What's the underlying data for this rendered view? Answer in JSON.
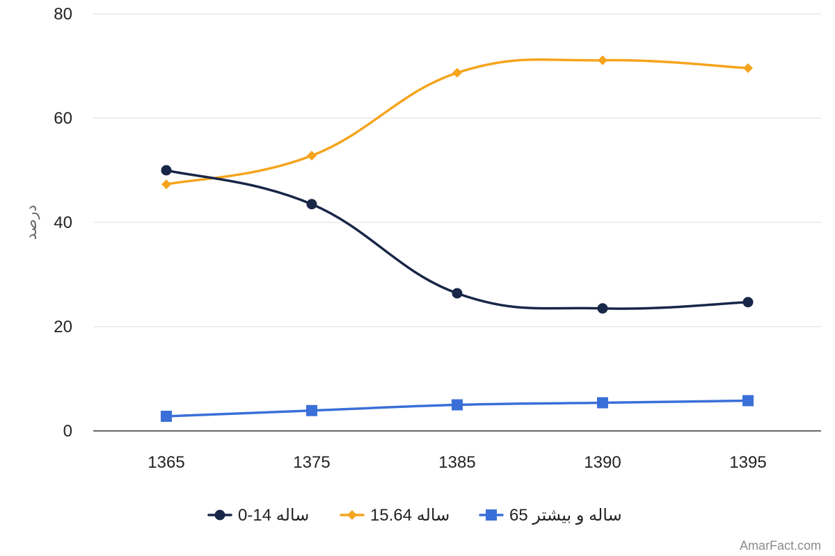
{
  "chart_data": {
    "type": "line",
    "title": "",
    "xlabel": "",
    "ylabel": "درصد",
    "categories": [
      "1365",
      "1375",
      "1385",
      "1390",
      "1395"
    ],
    "ylim": [
      0,
      80
    ],
    "yticks": [
      0,
      20,
      40,
      60,
      80
    ],
    "grid": true,
    "legend_position": "bottom",
    "smooth": true,
    "series": [
      {
        "name": "0-14 ساله",
        "values": [
          50.0,
          43.5,
          26.4,
          23.5,
          24.7
        ],
        "color": "#182647",
        "marker": "circle"
      },
      {
        "name": "15.64 ساله",
        "values": [
          47.3,
          52.8,
          68.7,
          71.1,
          69.6
        ],
        "color": "#F5A41C",
        "marker": "diamond"
      },
      {
        "name": "65 ساله و بیشتر",
        "values": [
          2.8,
          3.9,
          5.0,
          5.4,
          5.8
        ],
        "color": "#3A6FD8",
        "marker": "square"
      }
    ]
  },
  "watermark": "AmarFact.com"
}
